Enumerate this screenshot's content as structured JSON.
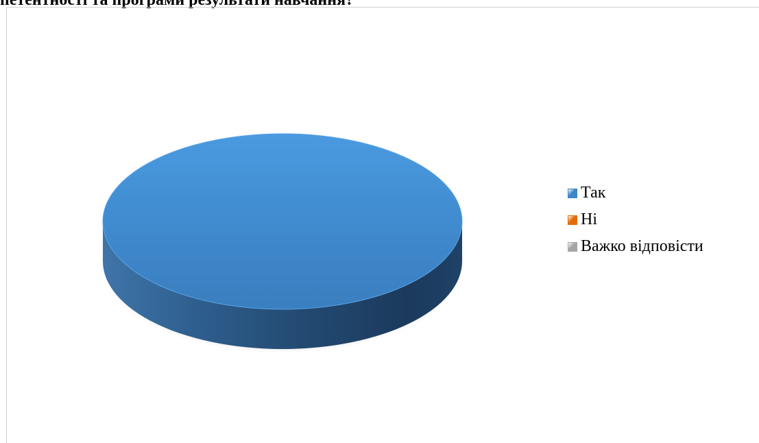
{
  "header_text": "петентності та програми результати навчання?",
  "chart_data": {
    "type": "pie",
    "title": "",
    "categories": [
      "Так",
      "Ні",
      "Важко відповісти"
    ],
    "values": [
      100,
      0,
      0
    ],
    "colors": [
      "#3d85c6",
      "#e36c0a",
      "#a5a5a5"
    ],
    "legend_position": "right",
    "style": "3d"
  }
}
